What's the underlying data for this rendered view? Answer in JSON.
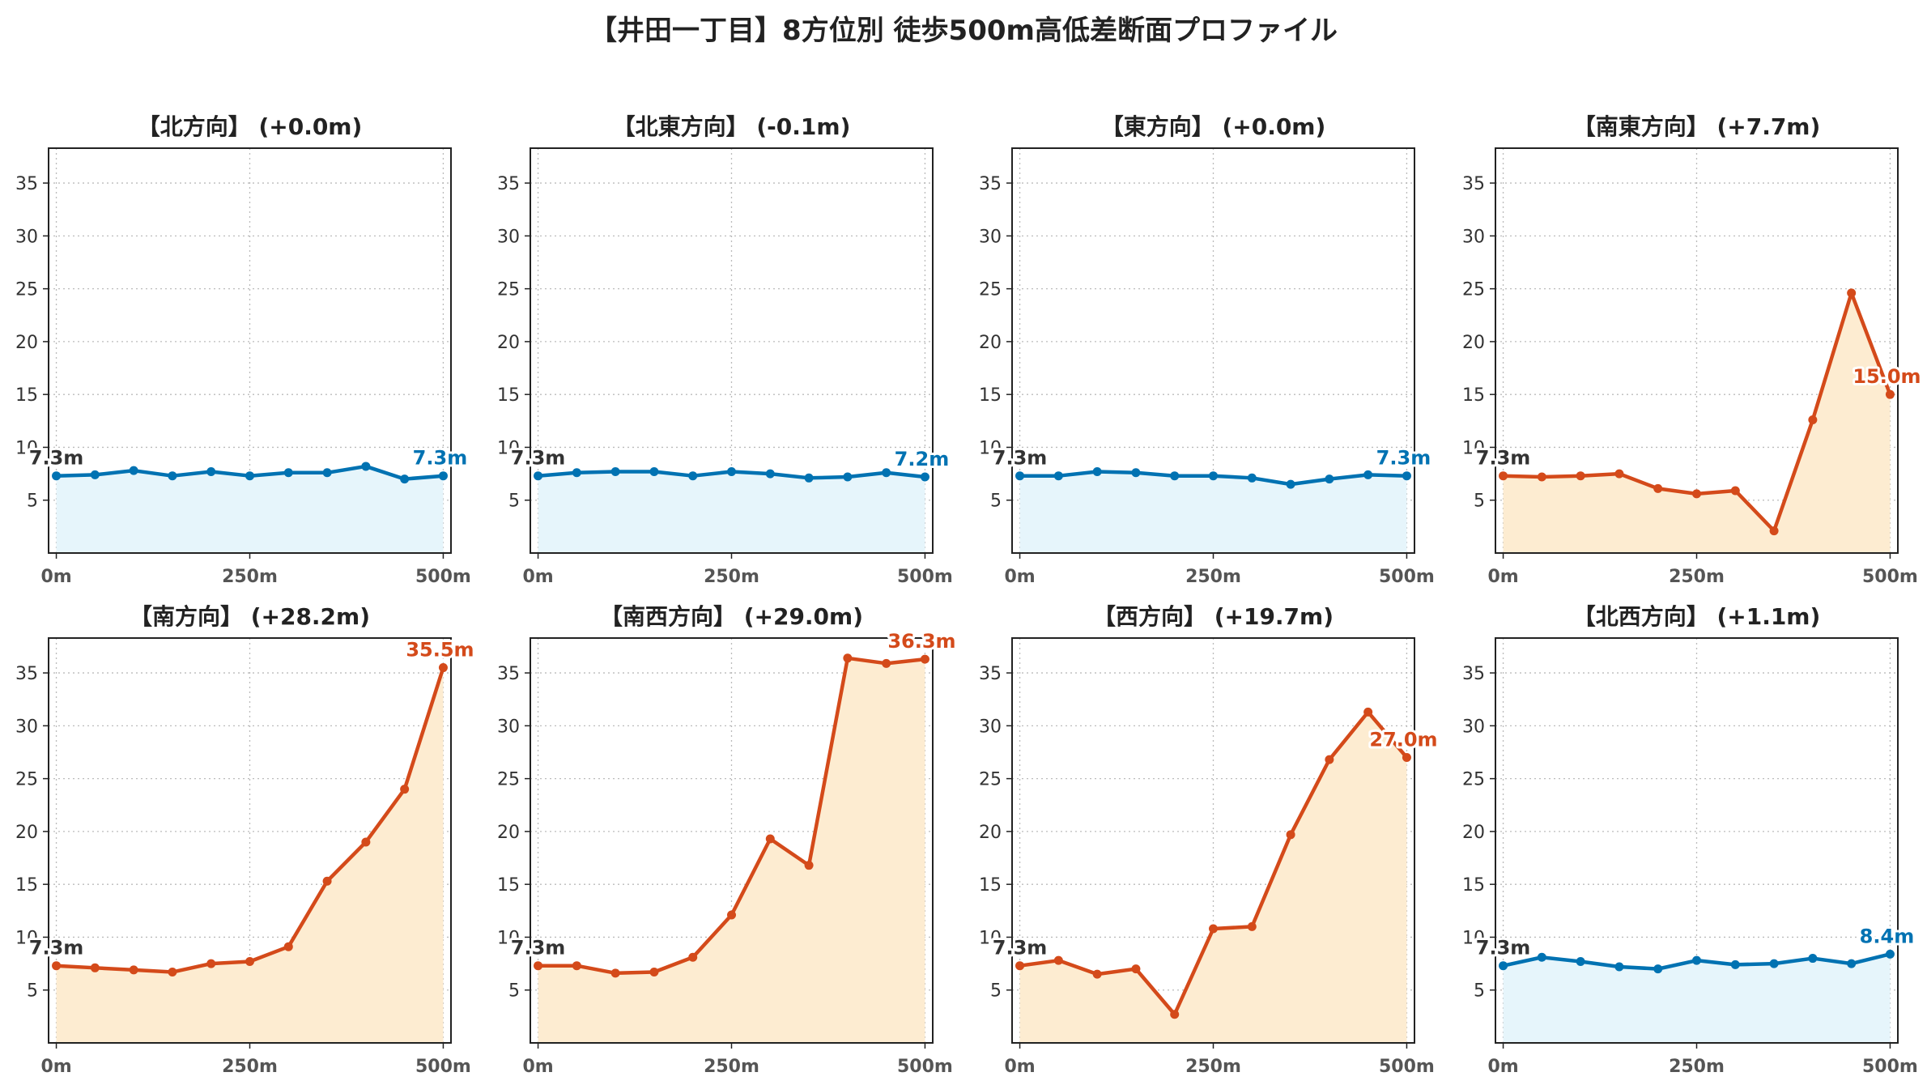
{
  "figure": {
    "title": "【井田一丁目】8方位別 徒歩500m高低差断面プロファイル"
  },
  "colors": {
    "flat_line": "#0072b2",
    "flat_fill": "#e6f5fb",
    "rise_line": "#d44a1a",
    "rise_fill": "#fdecd1",
    "start_label": "#333333",
    "grid": "#bbbbbb",
    "tick_text": "#333333",
    "xtick_text": "#555555"
  },
  "chart_data": [
    {
      "type": "line",
      "title": "【北方向】 (+0.0m)",
      "style": "flat",
      "x": [
        0,
        50,
        100,
        150,
        200,
        250,
        300,
        350,
        400,
        450,
        500
      ],
      "values": [
        7.3,
        7.4,
        7.8,
        7.3,
        7.7,
        7.3,
        7.6,
        7.6,
        8.2,
        7.0,
        7.3
      ],
      "start_label": "7.3m",
      "end_label": "7.3m",
      "xticks": [
        "0m",
        "250m",
        "500m"
      ],
      "xtick_values": [
        0,
        250,
        500
      ],
      "yticks": [
        5,
        10,
        15,
        20,
        25,
        30,
        35
      ],
      "ylim": [
        0,
        38.3
      ],
      "xlim": [
        -10,
        510
      ],
      "grid": true
    },
    {
      "type": "line",
      "title": "【北東方向】 (-0.1m)",
      "style": "flat",
      "x": [
        0,
        50,
        100,
        150,
        200,
        250,
        300,
        350,
        400,
        450,
        500
      ],
      "values": [
        7.3,
        7.6,
        7.7,
        7.7,
        7.3,
        7.7,
        7.5,
        7.1,
        7.2,
        7.6,
        7.2
      ],
      "start_label": "7.3m",
      "end_label": "7.2m",
      "xticks": [
        "0m",
        "250m",
        "500m"
      ],
      "xtick_values": [
        0,
        250,
        500
      ],
      "yticks": [
        5,
        10,
        15,
        20,
        25,
        30,
        35
      ],
      "ylim": [
        0,
        38.3
      ],
      "xlim": [
        -10,
        510
      ],
      "grid": true
    },
    {
      "type": "line",
      "title": "【東方向】 (+0.0m)",
      "style": "flat",
      "x": [
        0,
        50,
        100,
        150,
        200,
        250,
        300,
        350,
        400,
        450,
        500
      ],
      "values": [
        7.3,
        7.3,
        7.7,
        7.6,
        7.3,
        7.3,
        7.1,
        6.5,
        7.0,
        7.4,
        7.3
      ],
      "start_label": "7.3m",
      "end_label": "7.3m",
      "xticks": [
        "0m",
        "250m",
        "500m"
      ],
      "xtick_values": [
        0,
        250,
        500
      ],
      "yticks": [
        5,
        10,
        15,
        20,
        25,
        30,
        35
      ],
      "ylim": [
        0,
        38.3
      ],
      "xlim": [
        -10,
        510
      ],
      "grid": true
    },
    {
      "type": "line",
      "title": "【南東方向】 (+7.7m)",
      "style": "rise",
      "x": [
        0,
        50,
        100,
        150,
        200,
        250,
        300,
        350,
        400,
        450,
        500
      ],
      "values": [
        7.3,
        7.2,
        7.3,
        7.5,
        6.1,
        5.6,
        5.9,
        2.1,
        12.6,
        24.6,
        15.0
      ],
      "start_label": "7.3m",
      "end_label": "15.0m",
      "xticks": [
        "0m",
        "250m",
        "500m"
      ],
      "xtick_values": [
        0,
        250,
        500
      ],
      "yticks": [
        5,
        10,
        15,
        20,
        25,
        30,
        35
      ],
      "ylim": [
        0,
        38.3
      ],
      "xlim": [
        -10,
        510
      ],
      "grid": true
    },
    {
      "type": "line",
      "title": "【南方向】 (+28.2m)",
      "style": "rise",
      "x": [
        0,
        50,
        100,
        150,
        200,
        250,
        300,
        350,
        400,
        450,
        500
      ],
      "values": [
        7.3,
        7.1,
        6.9,
        6.7,
        7.5,
        7.7,
        9.1,
        15.3,
        19.0,
        24.0,
        35.5
      ],
      "start_label": "7.3m",
      "end_label": "35.5m",
      "xticks": [
        "0m",
        "250m",
        "500m"
      ],
      "xtick_values": [
        0,
        250,
        500
      ],
      "yticks": [
        5,
        10,
        15,
        20,
        25,
        30,
        35
      ],
      "ylim": [
        0,
        38.3
      ],
      "xlim": [
        -10,
        510
      ],
      "grid": true
    },
    {
      "type": "line",
      "title": "【南西方向】 (+29.0m)",
      "style": "rise",
      "x": [
        0,
        50,
        100,
        150,
        200,
        250,
        300,
        350,
        400,
        450,
        500
      ],
      "values": [
        7.3,
        7.3,
        6.6,
        6.7,
        8.1,
        12.1,
        19.3,
        16.8,
        36.4,
        35.9,
        36.3
      ],
      "start_label": "7.3m",
      "end_label": "36.3m",
      "xticks": [
        "0m",
        "250m",
        "500m"
      ],
      "xtick_values": [
        0,
        250,
        500
      ],
      "yticks": [
        5,
        10,
        15,
        20,
        25,
        30,
        35
      ],
      "ylim": [
        0,
        38.3
      ],
      "xlim": [
        -10,
        510
      ],
      "grid": true
    },
    {
      "type": "line",
      "title": "【西方向】 (+19.7m)",
      "style": "rise",
      "x": [
        0,
        50,
        100,
        150,
        200,
        250,
        300,
        350,
        400,
        450,
        500
      ],
      "values": [
        7.3,
        7.8,
        6.5,
        7.0,
        2.7,
        10.8,
        11.0,
        19.7,
        26.8,
        31.3,
        27.0
      ],
      "start_label": "7.3m",
      "end_label": "27.0m",
      "xticks": [
        "0m",
        "250m",
        "500m"
      ],
      "xtick_values": [
        0,
        250,
        500
      ],
      "yticks": [
        5,
        10,
        15,
        20,
        25,
        30,
        35
      ],
      "ylim": [
        0,
        38.3
      ],
      "xlim": [
        -10,
        510
      ],
      "grid": true
    },
    {
      "type": "line",
      "title": "【北西方向】 (+1.1m)",
      "style": "flat",
      "x": [
        0,
        50,
        100,
        150,
        200,
        250,
        300,
        350,
        400,
        450,
        500
      ],
      "values": [
        7.3,
        8.1,
        7.7,
        7.2,
        7.0,
        7.8,
        7.4,
        7.5,
        8.0,
        7.5,
        8.4
      ],
      "start_label": "7.3m",
      "end_label": "8.4m",
      "xticks": [
        "0m",
        "250m",
        "500m"
      ],
      "xtick_values": [
        0,
        250,
        500
      ],
      "yticks": [
        5,
        10,
        15,
        20,
        25,
        30,
        35
      ],
      "ylim": [
        0,
        38.3
      ],
      "xlim": [
        -10,
        510
      ],
      "grid": true
    }
  ]
}
